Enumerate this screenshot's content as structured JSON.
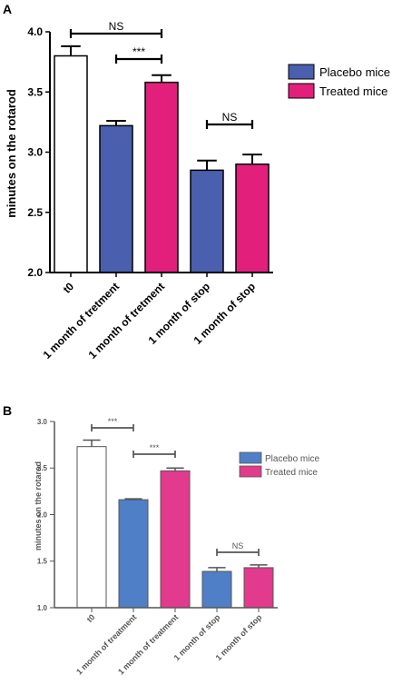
{
  "panels": [
    {
      "label": "A",
      "legend": [
        "Placebo mice",
        "Treated mice"
      ]
    },
    {
      "label": "B",
      "legend": [
        "Placebo mice",
        "Treated mice"
      ]
    }
  ],
  "colors": {
    "placebo": "#4a5fad",
    "treated": "#e2207c",
    "baseline": "#ffffff",
    "placebo_b": "#4f7fc6",
    "treated_b": "#e23a8d",
    "axis": "#000000",
    "axis_b": "#555555"
  },
  "chart_data": [
    {
      "type": "bar",
      "panel": "A",
      "categories": [
        "t0",
        "1 month of tretment",
        "1 month of tretment",
        "1 month of stop",
        "1 month of stop"
      ],
      "values": [
        3.8,
        3.22,
        3.58,
        2.85,
        2.9
      ],
      "errors": [
        0.08,
        0.04,
        0.06,
        0.08,
        0.08
      ],
      "bar_groups": [
        "baseline",
        "placebo",
        "treated",
        "placebo",
        "treated"
      ],
      "ylabel": "minutes on the rotarod",
      "ylim": [
        2.0,
        4.0
      ],
      "yticks": [
        "2.0",
        "2.5",
        "3.0",
        "3.5",
        "4.0"
      ],
      "legend": [
        "Placebo mice",
        "Treated mice"
      ],
      "legend_position": "right",
      "annotations": [
        {
          "from": 0,
          "to": 2,
          "text": "NS"
        },
        {
          "from": 1,
          "to": 2,
          "text": "***"
        },
        {
          "from": 3,
          "to": 4,
          "text": "NS"
        }
      ]
    },
    {
      "type": "bar",
      "panel": "B",
      "categories": [
        "t0",
        "1 month of treatment",
        "1 month of treatment",
        "1 month of stop",
        "1 month of stop"
      ],
      "values": [
        2.73,
        2.16,
        2.47,
        1.39,
        1.43
      ],
      "errors": [
        0.07,
        0.01,
        0.03,
        0.04,
        0.03
      ],
      "bar_groups": [
        "baseline",
        "placebo",
        "treated",
        "placebo",
        "treated"
      ],
      "ylabel": "minutes on the rotarod",
      "ylim": [
        1.0,
        3.0
      ],
      "yticks": [
        "1.0",
        "1.5",
        "2.0",
        "2.5",
        "3.0"
      ],
      "legend": [
        "Placebo mice",
        "Treated mice"
      ],
      "legend_position": "right",
      "annotations": [
        {
          "from": 0,
          "to": 1,
          "text": "***"
        },
        {
          "from": 1,
          "to": 2,
          "text": "***"
        },
        {
          "from": 3,
          "to": 4,
          "text": "NS"
        }
      ]
    }
  ]
}
